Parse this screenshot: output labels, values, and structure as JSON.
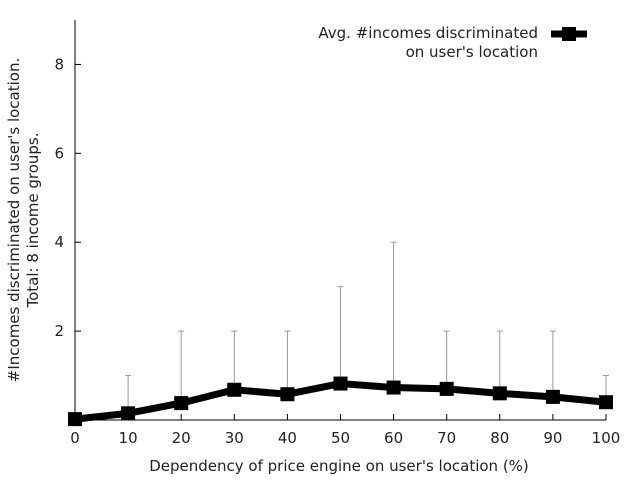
{
  "chart_data": {
    "type": "line",
    "xlabel": "Dependency of price engine on user's location (%)",
    "ylabel_lines": [
      "#Incomes discriminated on user's location.",
      "Total: 8 income groups."
    ],
    "x": [
      0,
      10,
      20,
      30,
      40,
      50,
      60,
      70,
      80,
      90,
      100
    ],
    "xlim": [
      0,
      100
    ],
    "ylim": [
      0,
      9
    ],
    "x_ticks": [
      "0",
      "10",
      "20",
      "30",
      "40",
      "50",
      "60",
      "70",
      "80",
      "90",
      "100"
    ],
    "y_ticks": [
      "2",
      "4",
      "6",
      "8"
    ],
    "y_tick_values": [
      2,
      4,
      6,
      8
    ],
    "grid": false,
    "legend_position": "top-right",
    "series": [
      {
        "name_lines": [
          "Avg. #incomes discriminated",
          "on user's location"
        ],
        "color": "#000000",
        "marker": "square",
        "values": [
          0.02,
          0.15,
          0.38,
          0.68,
          0.58,
          0.82,
          0.73,
          0.7,
          0.6,
          0.52,
          0.4
        ],
        "error_upper": [
          0,
          1,
          2,
          2,
          2,
          3,
          4,
          2,
          2,
          2,
          1
        ]
      }
    ]
  }
}
